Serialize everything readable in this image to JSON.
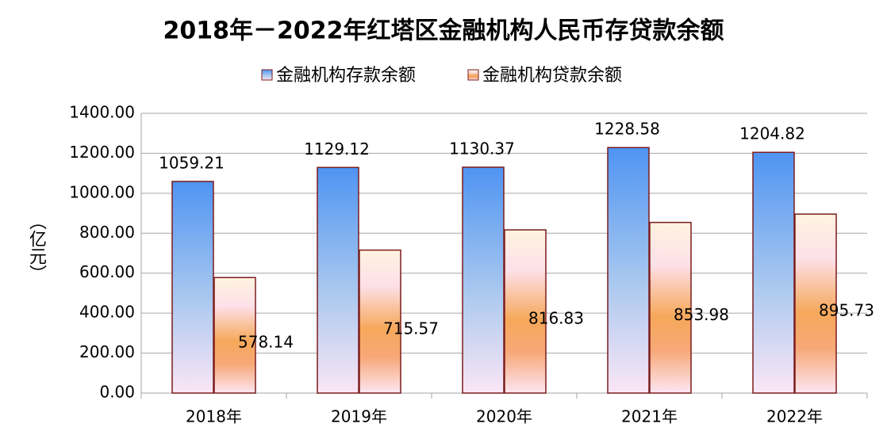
{
  "chart_data": {
    "type": "bar",
    "title": "2018年－2022年红塔区金融机构人民币存贷款余额",
    "y_label": "（亿元）",
    "categories": [
      "2018年",
      "2019年",
      "2020年",
      "2021年",
      "2022年"
    ],
    "series": [
      {
        "name": "金融机构存款余额",
        "color": "#4f94f2",
        "values": [
          1059.21,
          1129.12,
          1130.37,
          1228.58,
          1204.82
        ]
      },
      {
        "name": "金融机构贷款余额",
        "color": "#f6a85a",
        "values": [
          578.14,
          715.57,
          816.83,
          853.98,
          895.73
        ]
      }
    ],
    "ylim": [
      0,
      1400
    ],
    "yticks": [
      {
        "value": 0,
        "label": "0.00"
      },
      {
        "value": 200,
        "label": "200.00"
      },
      {
        "value": 400,
        "label": "400.00"
      },
      {
        "value": 600,
        "label": "600.00"
      },
      {
        "value": 800,
        "label": "800.00"
      },
      {
        "value": 1000,
        "label": "1000.00"
      },
      {
        "value": 1200,
        "label": "1200.00"
      },
      {
        "value": 1400,
        "label": "1400.00"
      }
    ],
    "grid": true,
    "legend": "top"
  }
}
